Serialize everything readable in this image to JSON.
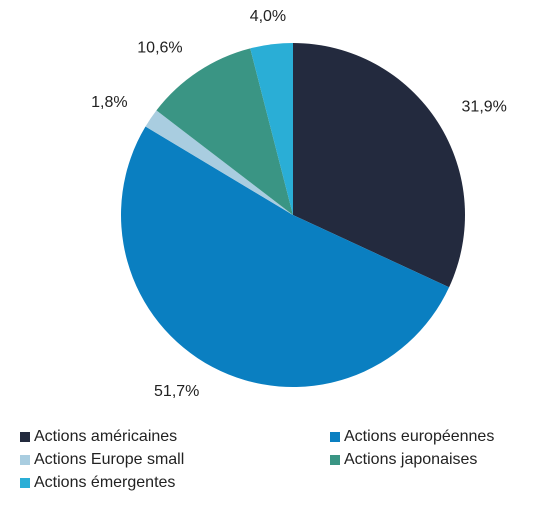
{
  "chart_data": {
    "type": "pie",
    "categories": [
      "Actions américaines",
      "Actions européennes",
      "Actions Europe small",
      "Actions japonaises",
      "Actions émergentes"
    ],
    "values": [
      31.9,
      51.7,
      1.8,
      10.6,
      4.0
    ],
    "value_labels": [
      "31,9%",
      "51,7%",
      "1,8%",
      "10,6%",
      "4,0%"
    ],
    "colors": [
      "#232a3e",
      "#0a7fc1",
      "#a9cde0",
      "#3a9584",
      "#2aaed6"
    ],
    "legend": "bottom"
  }
}
